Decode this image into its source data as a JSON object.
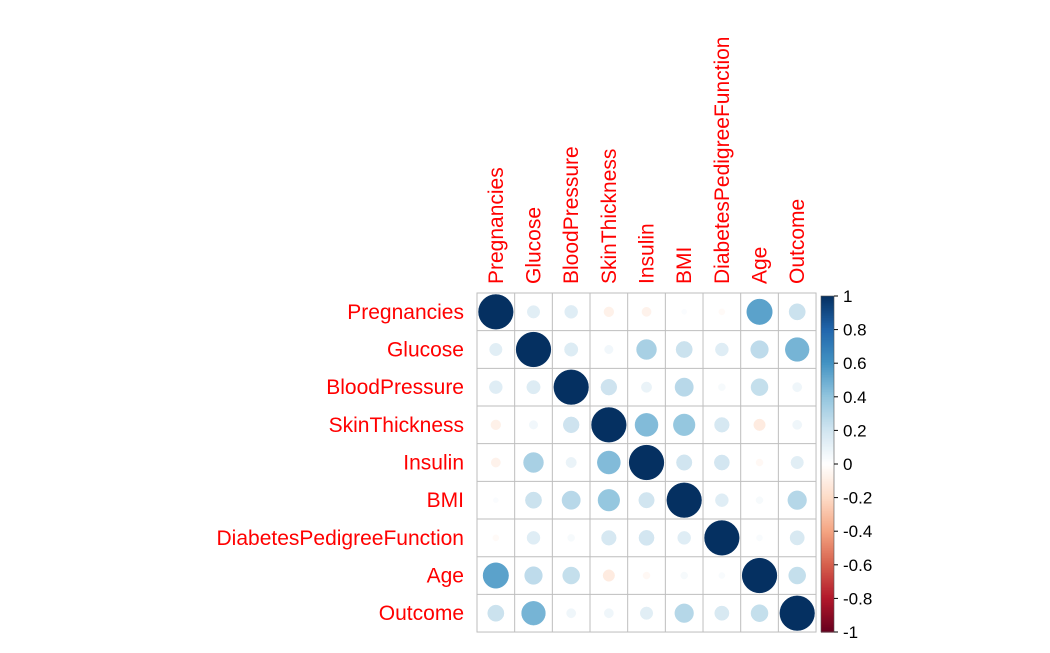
{
  "chart_data": {
    "type": "heatmap",
    "style": "circle correlation matrix",
    "variables": [
      "Pregnancies",
      "Glucose",
      "BloodPressure",
      "SkinThickness",
      "Insulin",
      "BMI",
      "DiabetesPedigreeFunction",
      "Age",
      "Outcome"
    ],
    "matrix": [
      [
        1.0,
        0.13,
        0.14,
        -0.08,
        -0.07,
        0.02,
        -0.03,
        0.54,
        0.22
      ],
      [
        0.13,
        1.0,
        0.15,
        0.06,
        0.33,
        0.22,
        0.14,
        0.26,
        0.47
      ],
      [
        0.14,
        0.15,
        1.0,
        0.21,
        0.09,
        0.28,
        0.04,
        0.24,
        0.07
      ],
      [
        -0.08,
        0.06,
        0.21,
        1.0,
        0.44,
        0.39,
        0.18,
        -0.11,
        0.07
      ],
      [
        -0.07,
        0.33,
        0.09,
        0.44,
        1.0,
        0.2,
        0.19,
        -0.04,
        0.13
      ],
      [
        0.02,
        0.22,
        0.28,
        0.39,
        0.2,
        1.0,
        0.14,
        0.04,
        0.29
      ],
      [
        -0.03,
        0.14,
        0.04,
        0.18,
        0.19,
        0.14,
        1.0,
        0.03,
        0.17
      ],
      [
        0.54,
        0.26,
        0.24,
        -0.11,
        -0.04,
        0.04,
        0.03,
        1.0,
        0.24
      ],
      [
        0.22,
        0.47,
        0.07,
        0.07,
        0.13,
        0.29,
        0.17,
        0.24,
        1.0
      ]
    ],
    "colorbar": {
      "range": [
        -1,
        1
      ],
      "ticks": [
        "1",
        "0.8",
        "0.6",
        "0.4",
        "0.2",
        "0",
        "-0.2",
        "-0.4",
        "-0.6",
        "-0.8",
        "-1"
      ]
    },
    "label_color": "#ff0000",
    "positive_color": "#053061",
    "negative_color": "#67001f",
    "grid": true,
    "legend_position": "right"
  }
}
